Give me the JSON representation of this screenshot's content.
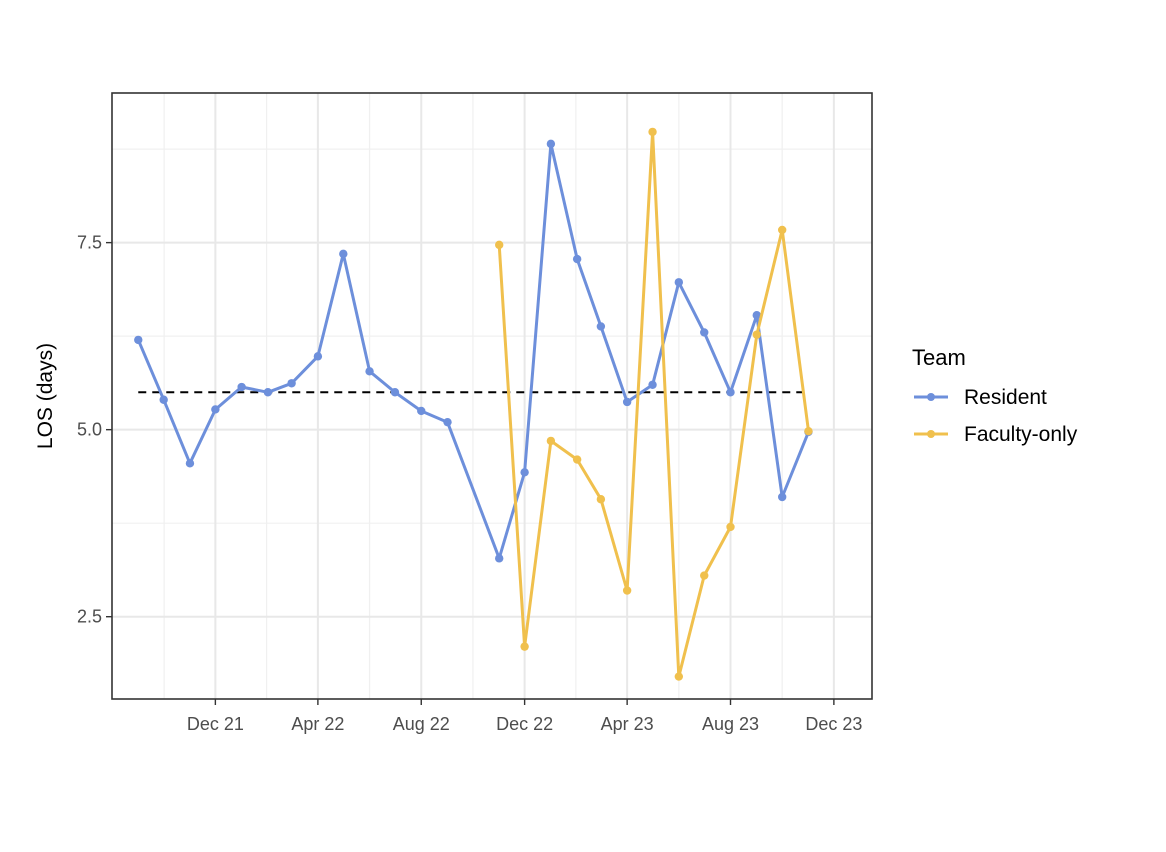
{
  "chart_data": {
    "type": "line",
    "title": "",
    "xlabel": "",
    "ylabel": "LOS (days)",
    "x_ticks": [
      "Dec 21",
      "Apr 22",
      "Aug 22",
      "Dec 22",
      "Apr 23",
      "Aug 23",
      "Dec 23"
    ],
    "y_ticks": [
      "2.5",
      "5.0",
      "7.5"
    ],
    "ylim": [
      1.4,
      9.5
    ],
    "xlim": [
      "2021-08-01",
      "2024-01-15"
    ],
    "grid": true,
    "legend": {
      "title": "Team",
      "position": "right"
    },
    "reference_line": {
      "y": 5.5,
      "style": "dashed",
      "color": "#000000"
    },
    "series": [
      {
        "name": "Resident",
        "color": "#6d8fdb",
        "points": [
          {
            "x": "2021-09",
            "y": 6.2
          },
          {
            "x": "2021-10",
            "y": 5.4
          },
          {
            "x": "2021-11",
            "y": 4.55
          },
          {
            "x": "2021-12",
            "y": 5.27
          },
          {
            "x": "2022-01",
            "y": 5.57
          },
          {
            "x": "2022-02",
            "y": 5.5
          },
          {
            "x": "2022-03",
            "y": 5.62
          },
          {
            "x": "2022-04",
            "y": 5.98
          },
          {
            "x": "2022-05",
            "y": 7.35
          },
          {
            "x": "2022-06",
            "y": 5.78
          },
          {
            "x": "2022-07",
            "y": 5.5
          },
          {
            "x": "2022-08",
            "y": 5.25
          },
          {
            "x": "2022-09",
            "y": 5.1
          },
          {
            "x": "2022-11",
            "y": 3.28
          },
          {
            "x": "2022-12",
            "y": 4.43
          },
          {
            "x": "2023-01",
            "y": 8.82
          },
          {
            "x": "2023-02",
            "y": 7.28
          },
          {
            "x": "2023-03",
            "y": 6.38
          },
          {
            "x": "2023-04",
            "y": 5.37
          },
          {
            "x": "2023-05",
            "y": 5.6
          },
          {
            "x": "2023-06",
            "y": 6.97
          },
          {
            "x": "2023-07",
            "y": 6.3
          },
          {
            "x": "2023-08",
            "y": 5.5
          },
          {
            "x": "2023-09",
            "y": 6.53
          },
          {
            "x": "2023-10",
            "y": 4.1
          },
          {
            "x": "2023-11",
            "y": 4.97
          }
        ]
      },
      {
        "name": "Faculty-only",
        "color": "#f0c04d",
        "points": [
          {
            "x": "2022-11",
            "y": 7.47
          },
          {
            "x": "2022-12",
            "y": 2.1
          },
          {
            "x": "2023-01",
            "y": 4.85
          },
          {
            "x": "2023-02",
            "y": 4.6
          },
          {
            "x": "2023-03",
            "y": 4.07
          },
          {
            "x": "2023-04",
            "y": 2.85
          },
          {
            "x": "2023-05",
            "y": 8.98
          },
          {
            "x": "2023-06",
            "y": 1.7
          },
          {
            "x": "2023-07",
            "y": 3.05
          },
          {
            "x": "2023-08",
            "y": 3.7
          },
          {
            "x": "2023-09",
            "y": 6.27
          },
          {
            "x": "2023-10",
            "y": 7.67
          },
          {
            "x": "2023-11",
            "y": 4.98
          }
        ]
      }
    ]
  }
}
